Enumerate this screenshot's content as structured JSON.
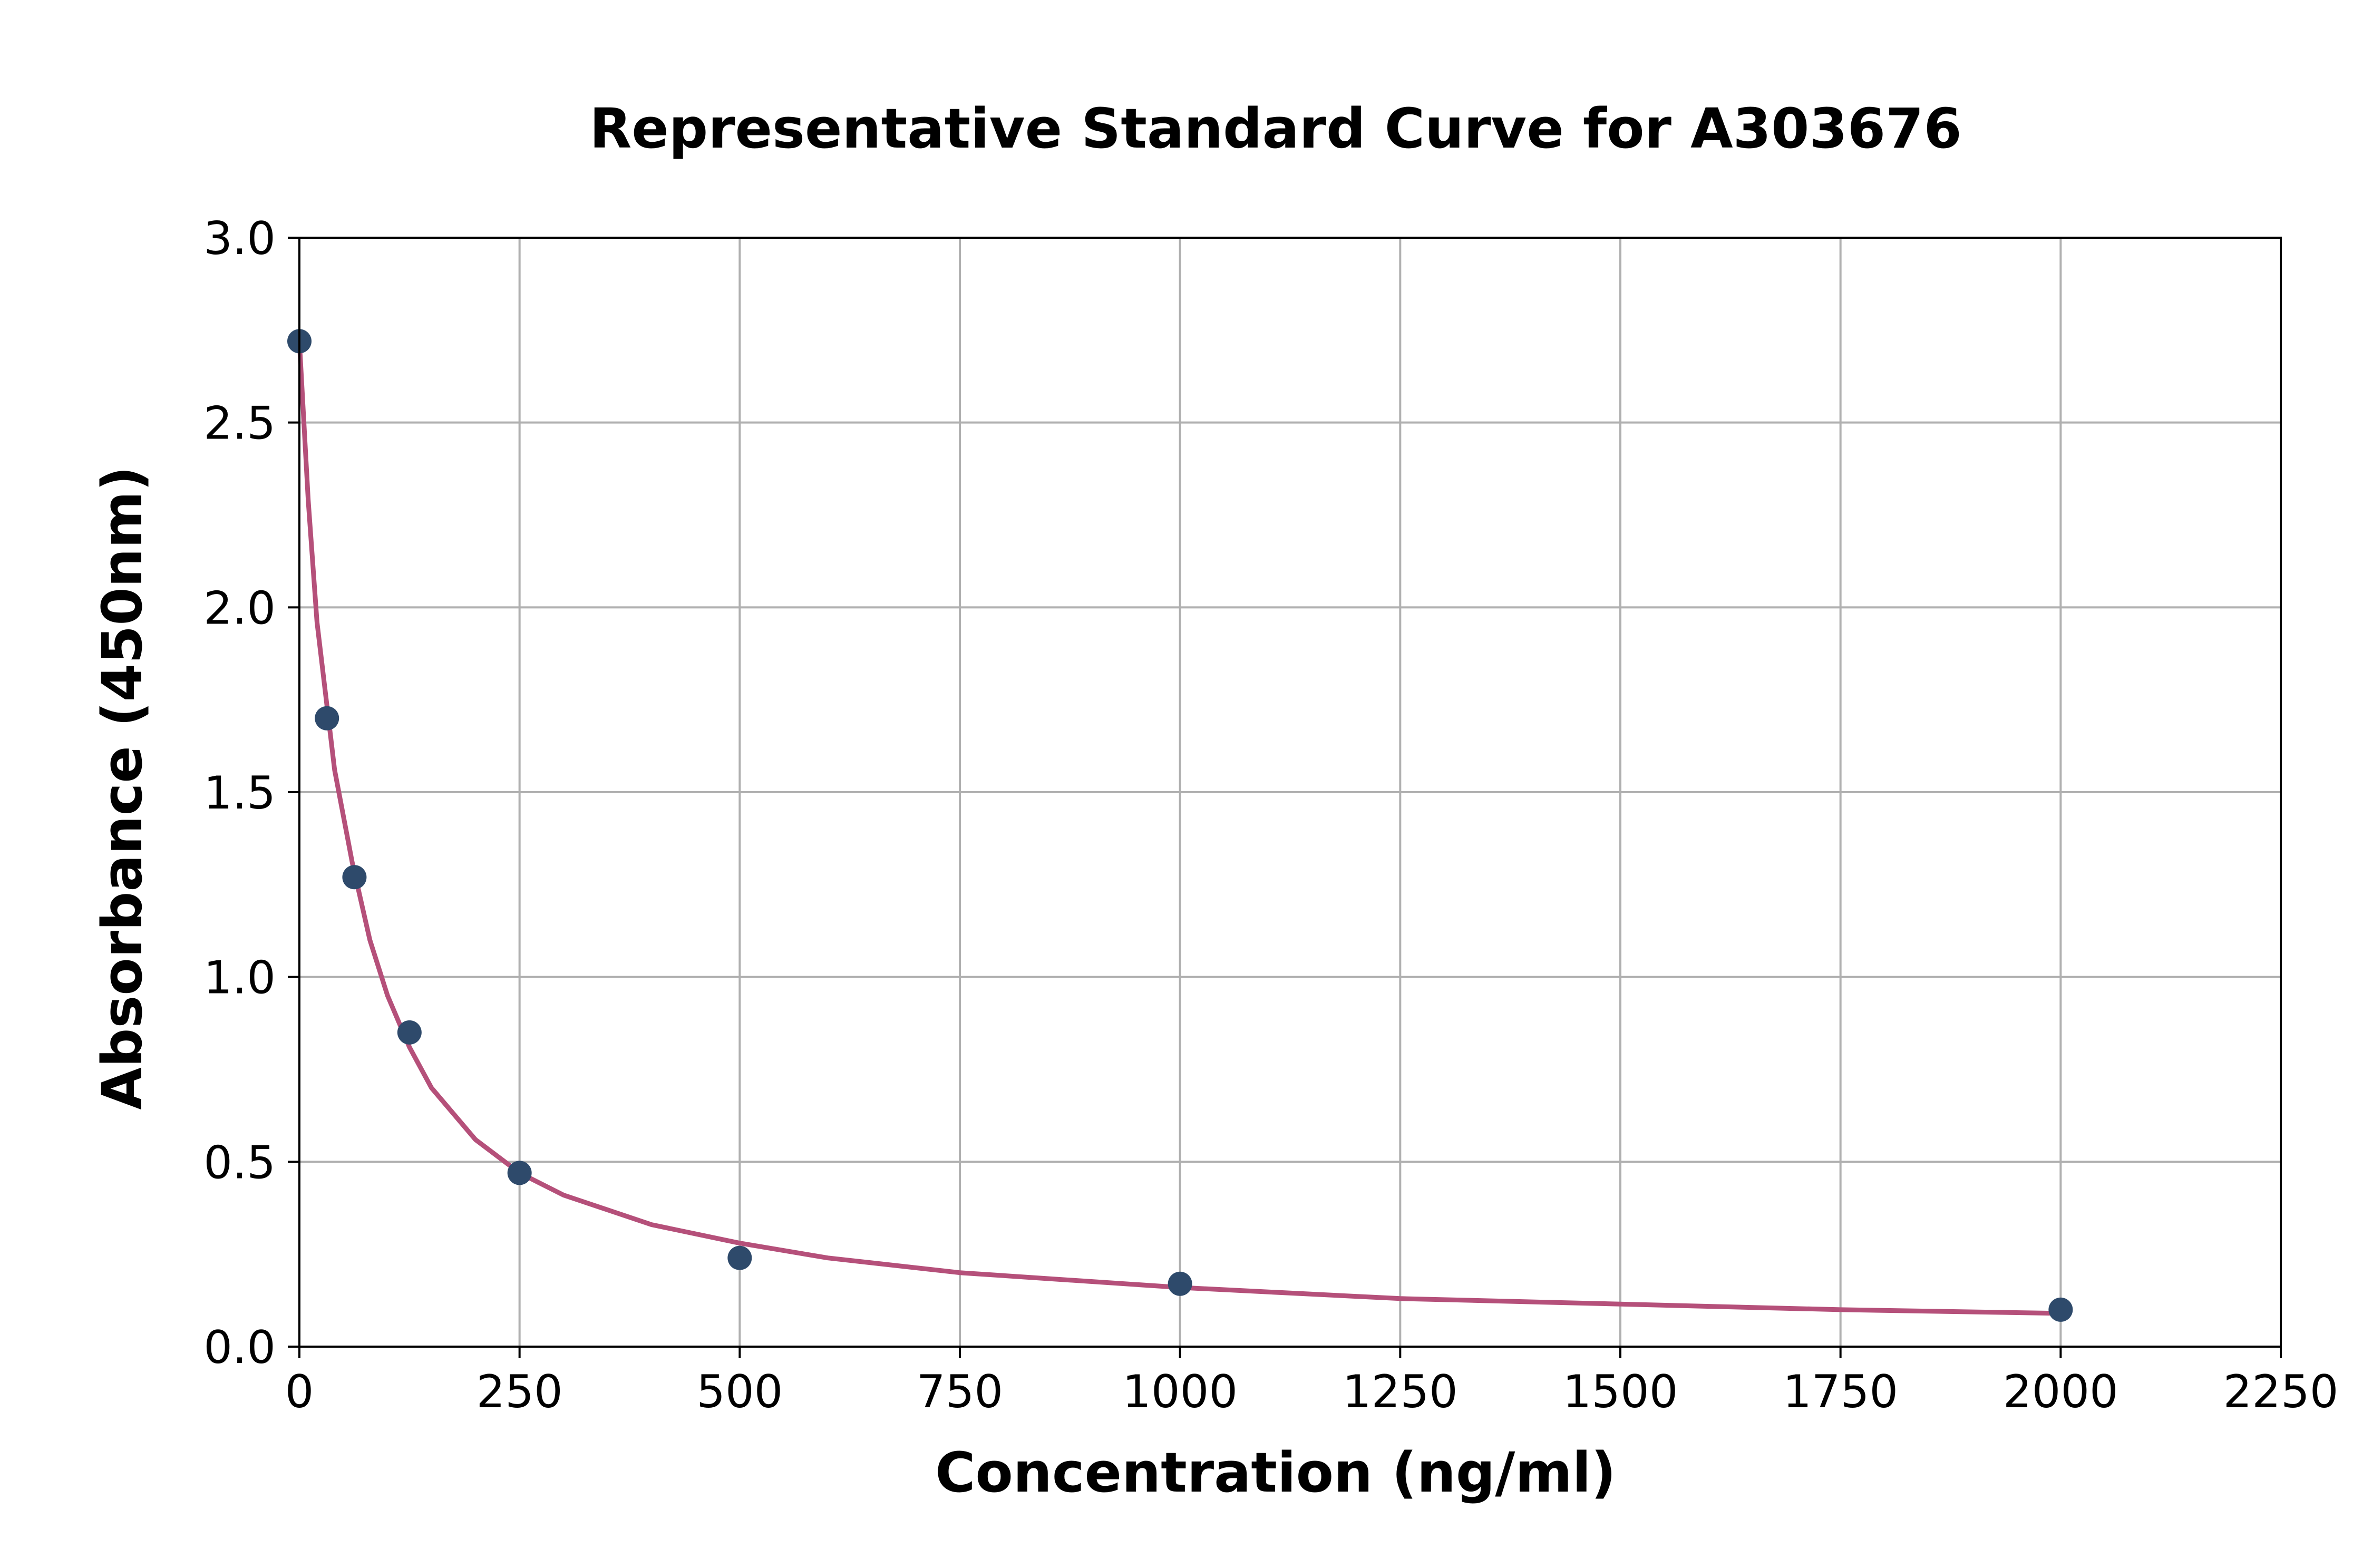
{
  "chart_data": {
    "type": "scatter",
    "title": "Representative Standard Curve for A303676",
    "xlabel": "Concentration (ng/ml)",
    "ylabel": "Absorbance (450nm)",
    "xlim": [
      0,
      2250
    ],
    "ylim": [
      0,
      3.0
    ],
    "x_ticks": [
      "0",
      "250",
      "500",
      "750",
      "1000",
      "1250",
      "1500",
      "1750",
      "2000",
      "2250"
    ],
    "y_ticks": [
      "0.0",
      "0.5",
      "1.0",
      "1.5",
      "2.0",
      "2.5",
      "3.0"
    ],
    "grid": true,
    "legend": "none",
    "series": [
      {
        "kind": "points",
        "color": "#2e4a6b",
        "x": [
          0,
          31.25,
          62.5,
          125,
          250,
          500,
          1000,
          2000
        ],
        "y": [
          2.72,
          1.7,
          1.27,
          0.85,
          0.47,
          0.24,
          0.17,
          0.1
        ]
      },
      {
        "kind": "fitted-curve",
        "color": "#b5507a",
        "x": [
          0,
          10,
          20,
          40,
          60,
          80,
          100,
          125,
          150,
          200,
          250,
          300,
          400,
          500,
          600,
          750,
          1000,
          1250,
          1500,
          1750,
          2000
        ],
        "y": [
          2.72,
          2.29,
          1.96,
          1.56,
          1.31,
          1.1,
          0.95,
          0.81,
          0.7,
          0.56,
          0.47,
          0.41,
          0.33,
          0.28,
          0.24,
          0.2,
          0.16,
          0.13,
          0.115,
          0.1,
          0.09
        ]
      }
    ]
  }
}
